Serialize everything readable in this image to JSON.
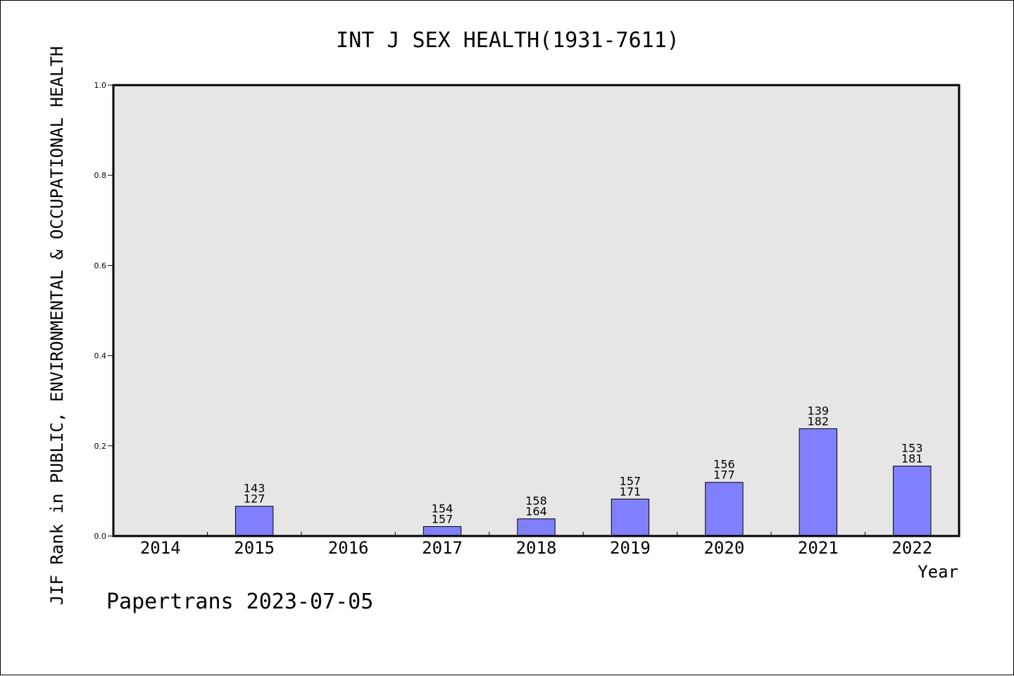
{
  "chart_data": {
    "type": "bar",
    "title": "INT J SEX HEALTH(1931-7611)",
    "xlabel": "Year",
    "ylabel": "JIF Rank in PUBLIC, ENVIRONMENTAL & OCCUPATIONAL HEALTH",
    "ylim": [
      0,
      1.0
    ],
    "yticks": [
      "0.0",
      "0.2",
      "0.4",
      "0.6",
      "0.8",
      "1.0"
    ],
    "categories": [
      "2014",
      "2015",
      "2016",
      "2017",
      "2018",
      "2019",
      "2020",
      "2021",
      "2022"
    ],
    "values": [
      null,
      0.066,
      null,
      0.021,
      0.038,
      0.082,
      0.119,
      0.238,
      0.155
    ],
    "labels_top": [
      "",
      "143",
      "",
      "154",
      "158",
      "157",
      "156",
      "139",
      "153"
    ],
    "labels_bottom": [
      "",
      "127",
      "",
      "157",
      "164",
      "171",
      "177",
      "182",
      "181"
    ],
    "grid": false,
    "bar_color": "#8080ff",
    "plot_background": "#e6e6e6"
  },
  "footer": "Papertrans 2023-07-05"
}
